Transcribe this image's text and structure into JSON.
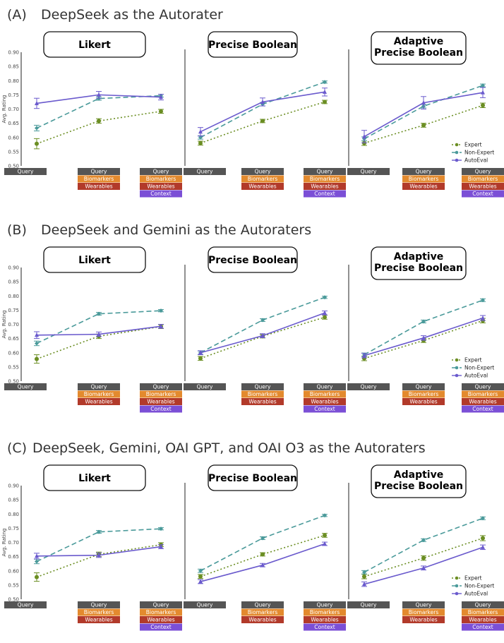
{
  "colors": {
    "expert": "#6b8e23",
    "non_expert": "#4a9a9a",
    "autoeval": "#6a5acd",
    "query_tag": "#555555",
    "biomarkers_tag": "#e38a2e",
    "wearables_tag": "#b23a2a",
    "context_tag": "#7b4fd6"
  },
  "legend": [
    "Expert",
    "Non-Expert",
    "AutoEval"
  ],
  "condition_tags": {
    "query": "Query",
    "biomarkers": "Biomarkers",
    "wearables": "Wearables",
    "context": "Context"
  },
  "chart_data": [
    {
      "section": "(A)",
      "title": "DeepSeek as the Autorater",
      "type": "line",
      "ylabel": "Avg. Rating",
      "ylim": [
        0.5,
        0.9
      ],
      "yticks": [
        "0.50",
        "0.55",
        "0.60",
        "0.65",
        "0.70",
        "0.75",
        "0.80",
        "0.85",
        "0.90"
      ],
      "categories": [
        "Query",
        "Query + Biomarkers + Wearables",
        "Query + Biomarkers + Wearables + Context"
      ],
      "panels": [
        {
          "title": "Likert",
          "series": [
            {
              "name": "Expert",
              "values": [
                0.578,
                0.658,
                0.692
              ],
              "errors": [
                0.018,
                0.008,
                0.007
              ]
            },
            {
              "name": "Non-Expert",
              "values": [
                0.633,
                0.737,
                0.747
              ],
              "errors": [
                0.01,
                0.006,
                0.005
              ]
            },
            {
              "name": "AutoEval",
              "values": [
                0.72,
                0.75,
                0.742
              ],
              "errors": [
                0.018,
                0.012,
                0.01
              ]
            }
          ]
        },
        {
          "title": "Precise Boolean",
          "series": [
            {
              "name": "Expert",
              "values": [
                0.58,
                0.658,
                0.725
              ],
              "errors": [
                0.007,
                0.006,
                0.006
              ]
            },
            {
              "name": "Non-Expert",
              "values": [
                0.6,
                0.717,
                0.795
              ],
              "errors": [
                0.006,
                0.006,
                0.004
              ]
            },
            {
              "name": "AutoEval",
              "values": [
                0.62,
                0.725,
                0.76
              ],
              "errors": [
                0.015,
                0.014,
                0.014
              ]
            }
          ]
        },
        {
          "title": "Adaptive Precise Boolean",
          "series": [
            {
              "name": "Expert",
              "values": [
                0.58,
                0.643,
                0.713
              ],
              "errors": [
                0.008,
                0.007,
                0.008
              ]
            },
            {
              "name": "Non-Expert",
              "values": [
                0.595,
                0.71,
                0.783
              ],
              "errors": [
                0.007,
                0.006,
                0.005
              ]
            },
            {
              "name": "AutoEval",
              "values": [
                0.603,
                0.722,
                0.758
              ],
              "errors": [
                0.022,
                0.022,
                0.018
              ]
            }
          ]
        }
      ]
    },
    {
      "section": "(B)",
      "title": "DeepSeek and Gemini as the Autoraters",
      "type": "line",
      "ylabel": "Avg. Rating",
      "ylim": [
        0.5,
        0.9
      ],
      "yticks": [
        "0.50",
        "0.55",
        "0.60",
        "0.65",
        "0.70",
        "0.75",
        "0.80",
        "0.85",
        "0.90"
      ],
      "categories": [
        "Query",
        "Query + Biomarkers + Wearables",
        "Query + Biomarkers + Wearables + Context"
      ],
      "panels": [
        {
          "title": "Likert",
          "series": [
            {
              "name": "Expert",
              "values": [
                0.578,
                0.658,
                0.692
              ],
              "errors": [
                0.015,
                0.008,
                0.007
              ]
            },
            {
              "name": "Non-Expert",
              "values": [
                0.633,
                0.737,
                0.748
              ],
              "errors": [
                0.008,
                0.005,
                0.004
              ]
            },
            {
              "name": "AutoEval",
              "values": [
                0.662,
                0.665,
                0.693
              ],
              "errors": [
                0.012,
                0.008,
                0.007
              ]
            }
          ]
        },
        {
          "title": "Precise Boolean",
          "series": [
            {
              "name": "Expert",
              "values": [
                0.58,
                0.658,
                0.725
              ],
              "errors": [
                0.007,
                0.006,
                0.007
              ]
            },
            {
              "name": "Non-Expert",
              "values": [
                0.6,
                0.715,
                0.795
              ],
              "errors": [
                0.006,
                0.005,
                0.004
              ]
            },
            {
              "name": "AutoEval",
              "values": [
                0.6,
                0.66,
                0.74
              ],
              "errors": [
                0.007,
                0.007,
                0.007
              ]
            }
          ]
        },
        {
          "title": "Adaptive Precise Boolean",
          "series": [
            {
              "name": "Expert",
              "values": [
                0.58,
                0.643,
                0.713
              ],
              "errors": [
                0.008,
                0.007,
                0.008
              ]
            },
            {
              "name": "Non-Expert",
              "values": [
                0.593,
                0.71,
                0.785
              ],
              "errors": [
                0.006,
                0.005,
                0.005
              ]
            },
            {
              "name": "AutoEval",
              "values": [
                0.59,
                0.652,
                0.722
              ],
              "errors": [
                0.008,
                0.008,
                0.009
              ]
            }
          ]
        }
      ]
    },
    {
      "section": "(C)",
      "title": "DeepSeek, Gemini, OAI GPT, and OAI O3 as the Autoraters",
      "type": "line",
      "ylabel": "Avg. Rating",
      "ylim": [
        0.5,
        0.9
      ],
      "yticks": [
        "0.50",
        "0.55",
        "0.60",
        "0.65",
        "0.70",
        "0.75",
        "0.80",
        "0.85",
        "0.90"
      ],
      "categories": [
        "Query",
        "Query + Biomarkers + Wearables",
        "Query + Biomarkers + Wearables + Context"
      ],
      "panels": [
        {
          "title": "Likert",
          "series": [
            {
              "name": "Expert",
              "values": [
                0.578,
                0.658,
                0.692
              ],
              "errors": [
                0.015,
                0.008,
                0.007
              ]
            },
            {
              "name": "Non-Expert",
              "values": [
                0.633,
                0.737,
                0.748
              ],
              "errors": [
                0.008,
                0.005,
                0.004
              ]
            },
            {
              "name": "AutoEval",
              "values": [
                0.652,
                0.655,
                0.685
              ],
              "errors": [
                0.01,
                0.008,
                0.007
              ]
            }
          ]
        },
        {
          "title": "Precise Boolean",
          "series": [
            {
              "name": "Expert",
              "values": [
                0.58,
                0.658,
                0.725
              ],
              "errors": [
                0.007,
                0.006,
                0.007
              ]
            },
            {
              "name": "Non-Expert",
              "values": [
                0.6,
                0.715,
                0.795
              ],
              "errors": [
                0.006,
                0.005,
                0.004
              ]
            },
            {
              "name": "AutoEval",
              "values": [
                0.562,
                0.62,
                0.695
              ],
              "errors": [
                0.007,
                0.006,
                0.006
              ]
            }
          ]
        },
        {
          "title": "Adaptive Precise Boolean",
          "series": [
            {
              "name": "Expert",
              "values": [
                0.58,
                0.645,
                0.715
              ],
              "errors": [
                0.008,
                0.008,
                0.009
              ]
            },
            {
              "name": "Non-Expert",
              "values": [
                0.595,
                0.708,
                0.785
              ],
              "errors": [
                0.006,
                0.005,
                0.005
              ]
            },
            {
              "name": "AutoEval",
              "values": [
                0.553,
                0.61,
                0.683
              ],
              "errors": [
                0.008,
                0.007,
                0.008
              ]
            }
          ]
        }
      ]
    }
  ]
}
